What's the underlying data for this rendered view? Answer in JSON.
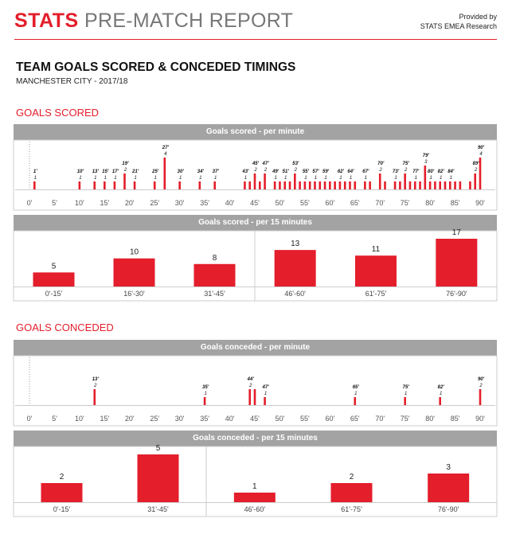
{
  "header": {
    "brand": "STATS",
    "report_title": "PRE-MATCH REPORT",
    "provided_by": "Provided by",
    "provider": "STATS EMEA Research"
  },
  "main": {
    "title": "TEAM GOALS SCORED & CONCEDED TIMINGS",
    "subtitle": "MANCHESTER CITY - 2017/18"
  },
  "sections": {
    "scored": "GOALS SCORED",
    "conceded": "GOALS CONCEDED"
  },
  "colors": {
    "accent": "#e41e2b",
    "panel_header": "#a3a3a3",
    "grid": "#cccccc"
  },
  "chart_data": [
    {
      "id": "scored_minute",
      "type": "bar",
      "title": "Goals scored - per minute",
      "x_ticks": [
        0,
        5,
        10,
        15,
        20,
        25,
        30,
        35,
        40,
        45,
        50,
        55,
        60,
        65,
        70,
        75,
        80,
        85,
        90
      ],
      "tick_suffix": "'",
      "ylim": [
        0,
        4
      ],
      "points": [
        {
          "minute": 1,
          "value": 1
        },
        {
          "minute": 10,
          "value": 1
        },
        {
          "minute": 13,
          "value": 1
        },
        {
          "minute": 15,
          "value": 1
        },
        {
          "minute": 17,
          "value": 1
        },
        {
          "minute": 19,
          "value": 2
        },
        {
          "minute": 21,
          "value": 1
        },
        {
          "minute": 25,
          "value": 1
        },
        {
          "minute": 27,
          "value": 4
        },
        {
          "minute": 30,
          "value": 1
        },
        {
          "minute": 34,
          "value": 1
        },
        {
          "minute": 37,
          "value": 1
        },
        {
          "minute": 43,
          "value": 1
        },
        {
          "minute": 45,
          "value": 2
        },
        {
          "minute": 47,
          "value": 2
        },
        {
          "minute": 49,
          "value": 1
        },
        {
          "minute": 51,
          "value": 1
        },
        {
          "minute": 53,
          "value": 2
        },
        {
          "minute": 55,
          "value": 1
        },
        {
          "minute": 57,
          "value": 1
        },
        {
          "minute": 59,
          "value": 1
        },
        {
          "minute": 62,
          "value": 1
        },
        {
          "minute": 64,
          "value": 1
        },
        {
          "minute": 67,
          "value": 1
        },
        {
          "minute": 70,
          "value": 2
        },
        {
          "minute": 73,
          "value": 1
        },
        {
          "minute": 75,
          "value": 2
        },
        {
          "minute": 77,
          "value": 1
        },
        {
          "minute": 79,
          "value": 3
        },
        {
          "minute": 80,
          "value": 1
        },
        {
          "minute": 82,
          "value": 1
        },
        {
          "minute": 84,
          "value": 1
        },
        {
          "minute": 89,
          "value": 2
        },
        {
          "minute": 90,
          "value": 4
        }
      ],
      "extra_bars": [
        44,
        46,
        50,
        52,
        54,
        56,
        58,
        60,
        61,
        63,
        65,
        68,
        71,
        74,
        76,
        78,
        81,
        83,
        85,
        86,
        88
      ],
      "labeled_bars": [
        1,
        10,
        13,
        15,
        17,
        19,
        21,
        25,
        27,
        30,
        34,
        37,
        43,
        45,
        47,
        49,
        51,
        53,
        55,
        57,
        59,
        62,
        64,
        67,
        70,
        73,
        75,
        77,
        79,
        80,
        82,
        84,
        89,
        90
      ]
    },
    {
      "id": "scored_15",
      "type": "bar",
      "title": "Goals scored - per 15 minutes",
      "categories": [
        "0'-15'",
        "16'-30'",
        "31'-45'",
        "46'-60'",
        "61'-75'",
        "76'-90'"
      ],
      "values": [
        5,
        10,
        8,
        13,
        11,
        17
      ],
      "ylim": [
        0,
        17
      ]
    },
    {
      "id": "conceded_minute",
      "type": "bar",
      "title": "Goals conceded - per minute",
      "x_ticks": [
        0,
        5,
        10,
        15,
        20,
        25,
        30,
        35,
        40,
        45,
        50,
        55,
        60,
        65,
        70,
        75,
        80,
        85,
        90
      ],
      "tick_suffix": "'",
      "ylim": [
        0,
        2
      ],
      "points": [
        {
          "minute": 13,
          "value": 2
        },
        {
          "minute": 35,
          "value": 1
        },
        {
          "minute": 44,
          "value": 2
        },
        {
          "minute": 45,
          "value": 2
        },
        {
          "minute": 47,
          "value": 1
        },
        {
          "minute": 65,
          "value": 1
        },
        {
          "minute": 75,
          "value": 1
        },
        {
          "minute": 82,
          "value": 1
        },
        {
          "minute": 90,
          "value": 2
        }
      ],
      "labeled_bars": [
        13,
        35,
        44,
        47,
        65,
        75,
        82,
        90
      ]
    },
    {
      "id": "conceded_15",
      "type": "bar",
      "title": "Goals conceded - per 15 minutes",
      "categories": [
        "0'-15'",
        "31'-45'",
        "46'-60'",
        "61'-75'",
        "76'-90'"
      ],
      "values": [
        2,
        5,
        1,
        2,
        3
      ],
      "ylim": [
        0,
        5
      ]
    }
  ]
}
